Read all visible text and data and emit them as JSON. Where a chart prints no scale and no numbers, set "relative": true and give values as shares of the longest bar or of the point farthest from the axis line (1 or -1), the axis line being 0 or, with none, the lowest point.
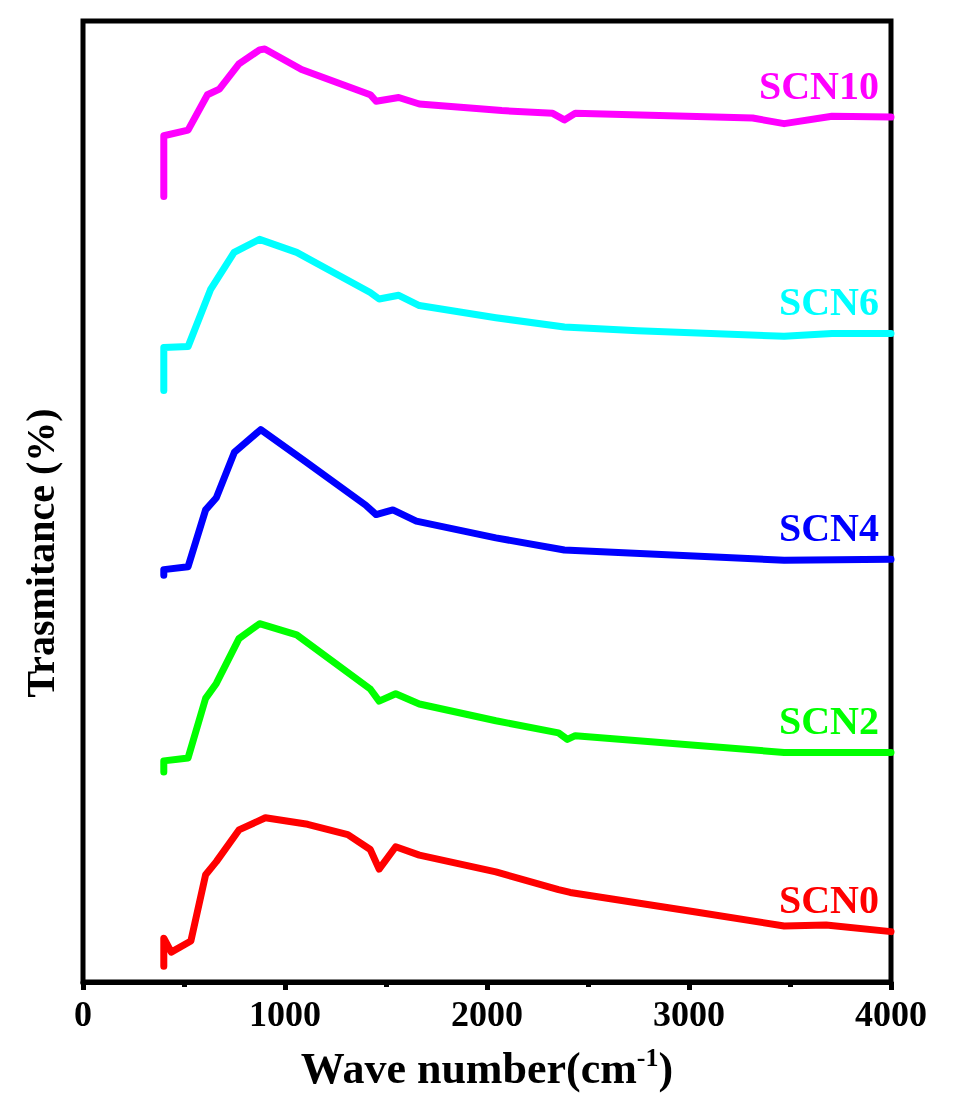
{
  "chart_data": {
    "type": "line",
    "relative": true,
    "xlabel": "Wave number(cm$^{-1}$)",
    "ylabel": "Trasmitance (%)",
    "xlim": [
      0,
      4000
    ],
    "xticks": [
      0,
      1000,
      2000,
      3000,
      4000
    ],
    "grid": false,
    "legend": false,
    "marker": "none",
    "line_style": "solid",
    "tick_labels": "x",
    "series": [
      {
        "name": "SCN0",
        "color": "#ff0000",
        "x": [
          400,
          400,
          437,
          534,
          607,
          660,
          772,
          903,
          1112,
          1311,
          1422,
          1466,
          1548,
          1665,
          2044,
          2354,
          2412,
          3034,
          3471,
          3679,
          4000
        ],
        "values": [
          0.017,
          0.047,
          0.032,
          0.044,
          0.115,
          0.129,
          0.163,
          0.176,
          0.169,
          0.158,
          0.142,
          0.121,
          0.145,
          0.136,
          0.118,
          0.099,
          0.096,
          0.075,
          0.06,
          0.061,
          0.054
        ]
      },
      {
        "name": "SCN2",
        "color": "#00ff00",
        "x": [
          400,
          400,
          520,
          607,
          660,
          772,
          874,
          1058,
          1422,
          1466,
          1548,
          1665,
          2044,
          2354,
          2398,
          2437,
          3471,
          4000
        ],
        "values": [
          0.225,
          0.237,
          0.24,
          0.304,
          0.32,
          0.368,
          0.384,
          0.372,
          0.314,
          0.301,
          0.309,
          0.298,
          0.28,
          0.267,
          0.26,
          0.264,
          0.246,
          0.246
        ]
      },
      {
        "name": "SCN4",
        "color": "#0000ff",
        "x": [
          400,
          400,
          520,
          607,
          660,
          750,
          880,
          1100,
          1400,
          1451,
          1534,
          1650,
          2044,
          2383,
          3471,
          4000
        ],
        "values": [
          0.436,
          0.442,
          0.445,
          0.506,
          0.519,
          0.568,
          0.592,
          0.558,
          0.511,
          0.501,
          0.506,
          0.494,
          0.476,
          0.463,
          0.452,
          0.453
        ]
      },
      {
        "name": "SCN6",
        "color": "#00ffff",
        "x": [
          400,
          400,
          520,
          631,
          748,
          874,
          1058,
          1422,
          1466,
          1563,
          1665,
          2044,
          2383,
          2747,
          3471,
          3708,
          4000
        ],
        "values": [
          0.634,
          0.68,
          0.681,
          0.742,
          0.782,
          0.796,
          0.782,
          0.739,
          0.732,
          0.736,
          0.725,
          0.712,
          0.702,
          0.698,
          0.692,
          0.695,
          0.695
        ]
      },
      {
        "name": "SCN10",
        "color": "#ff00ff",
        "x": [
          400,
          400,
          520,
          616,
          675,
          772,
          874,
          900,
          1082,
          1422,
          1451,
          1563,
          1665,
          2073,
          2325,
          2383,
          2437,
          3315,
          3471,
          3708,
          4000
        ],
        "values": [
          0.842,
          0.907,
          0.913,
          0.951,
          0.957,
          0.984,
          0.999,
          1.0,
          0.978,
          0.951,
          0.944,
          0.948,
          0.941,
          0.934,
          0.931,
          0.924,
          0.931,
          0.926,
          0.92,
          0.928,
          0.927
        ]
      }
    ]
  }
}
